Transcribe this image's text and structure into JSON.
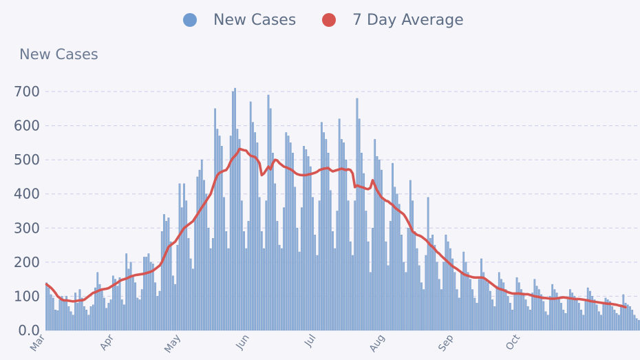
{
  "chart_data": {
    "type": "bar",
    "title": "",
    "ylabel": "New Cases",
    "xlabel": "",
    "ylim": [
      0,
      700
    ],
    "yticks": [
      "0.0",
      "100",
      "200",
      "300",
      "400",
      "500",
      "600",
      "700"
    ],
    "x_labels": [
      "Mar",
      "Apr",
      "May",
      "Jun",
      "Jul",
      "Aug",
      "Sep",
      "Oct"
    ],
    "x_label_day_index": [
      0,
      31,
      61,
      92,
      122,
      153,
      184,
      214
    ],
    "legend": [
      {
        "name": "New Cases",
        "color": "#6f9bd0"
      },
      {
        "name": "7 Day Average",
        "color": "#d65550"
      }
    ],
    "series": [
      {
        "name": "New Cases",
        "color": "#8fb0d8",
        "values": [
          140,
          125,
          105,
          95,
          60,
          58,
          90,
          100,
          85,
          100,
          70,
          55,
          45,
          110,
          80,
          120,
          95,
          70,
          60,
          45,
          70,
          75,
          125,
          170,
          135,
          120,
          95,
          65,
          80,
          90,
          160,
          150,
          130,
          155,
          90,
          75,
          225,
          180,
          200,
          160,
          140,
          95,
          90,
          120,
          215,
          215,
          225,
          200,
          195,
          140,
          100,
          115,
          290,
          340,
          320,
          330,
          260,
          160,
          135,
          250,
          430,
          360,
          430,
          380,
          270,
          210,
          180,
          330,
          450,
          470,
          500,
          440,
          400,
          300,
          240,
          270,
          650,
          590,
          570,
          540,
          390,
          290,
          240,
          570,
          700,
          710,
          590,
          560,
          380,
          290,
          240,
          320,
          670,
          610,
          580,
          550,
          390,
          290,
          240,
          380,
          690,
          650,
          520,
          430,
          320,
          250,
          240,
          360,
          580,
          570,
          550,
          520,
          420,
          300,
          230,
          360,
          540,
          530,
          510,
          480,
          390,
          280,
          220,
          380,
          610,
          580,
          560,
          520,
          410,
          290,
          240,
          350,
          620,
          560,
          550,
          500,
          380,
          260,
          220,
          380,
          680,
          620,
          520,
          460,
          350,
          260,
          170,
          300,
          560,
          510,
          500,
          470,
          380,
          260,
          190,
          320,
          490,
          420,
          400,
          370,
          280,
          200,
          170,
          300,
          440,
          380,
          290,
          240,
          190,
          140,
          120,
          220,
          390,
          270,
          280,
          250,
          200,
          150,
          120,
          200,
          280,
          260,
          240,
          210,
          170,
          120,
          95,
          170,
          230,
          200,
          170,
          150,
          120,
          95,
          80,
          150,
          210,
          170,
          150,
          140,
          115,
          90,
          70,
          130,
          170,
          150,
          140,
          120,
          100,
          80,
          60,
          110,
          155,
          140,
          120,
          110,
          90,
          70,
          60,
          110,
          150,
          130,
          120,
          105,
          85,
          55,
          45,
          100,
          135,
          120,
          110,
          95,
          80,
          60,
          50,
          90,
          120,
          110,
          100,
          90,
          80,
          60,
          45,
          85,
          125,
          115,
          100,
          90,
          75,
          55,
          45,
          80,
          95,
          90,
          85,
          70,
          60,
          50,
          45,
          75,
          105,
          80,
          75,
          70,
          60,
          45,
          35,
          30
        ]
      },
      {
        "name": "7 Day Average",
        "color": "#d65550",
        "values": [
          135,
          130,
          125,
          118,
          110,
          100,
          95,
          90,
          88,
          88,
          87,
          86,
          85,
          86,
          87,
          88,
          88,
          90,
          95,
          100,
          105,
          110,
          112,
          115,
          118,
          120,
          121,
          122,
          124,
          128,
          132,
          136,
          140,
          145,
          148,
          150,
          152,
          155,
          158,
          160,
          162,
          163,
          164,
          165,
          166,
          168,
          170,
          172,
          175,
          180,
          185,
          190,
          200,
          215,
          230,
          245,
          250,
          255,
          260,
          270,
          280,
          290,
          300,
          305,
          310,
          315,
          320,
          330,
          340,
          350,
          360,
          370,
          380,
          390,
          400,
          420,
          440,
          455,
          462,
          465,
          468,
          470,
          480,
          495,
          505,
          512,
          520,
          532,
          530,
          528,
          527,
          518,
          512,
          510,
          508,
          500,
          490,
          455,
          460,
          470,
          480,
          472,
          490,
          500,
          498,
          490,
          485,
          480,
          478,
          475,
          472,
          468,
          462,
          458,
          456,
          455,
          455,
          455,
          457,
          458,
          460,
          462,
          465,
          470,
          472,
          474,
          475,
          476,
          470,
          466,
          468,
          470,
          472,
          474,
          472,
          470,
          472,
          470,
          460,
          420,
          425,
          422,
          420,
          418,
          415,
          414,
          418,
          440,
          425,
          410,
          400,
          390,
          385,
          380,
          378,
          372,
          368,
          360,
          355,
          350,
          345,
          340,
          330,
          318,
          305,
          290,
          285,
          280,
          278,
          275,
          270,
          265,
          258,
          250,
          245,
          238,
          230,
          225,
          218,
          212,
          206,
          200,
          194,
          188,
          184,
          180,
          175,
          170,
          165,
          162,
          160,
          158,
          156,
          155,
          155,
          155,
          155,
          154,
          150,
          145,
          140,
          135,
          130,
          125,
          122,
          120,
          118,
          115,
          112,
          110,
          108,
          108,
          108,
          108,
          107,
          106,
          106,
          106,
          104,
          102,
          100,
          99,
          98,
          96,
          95,
          95,
          94,
          93,
          93,
          93,
          94,
          95,
          96,
          97,
          96,
          95,
          94,
          93,
          92,
          92,
          92,
          91,
          90,
          89,
          88,
          86,
          85,
          84,
          83,
          82,
          81,
          80,
          79,
          78,
          78,
          77,
          76,
          75,
          73,
          72,
          70,
          68
        ]
      }
    ]
  }
}
